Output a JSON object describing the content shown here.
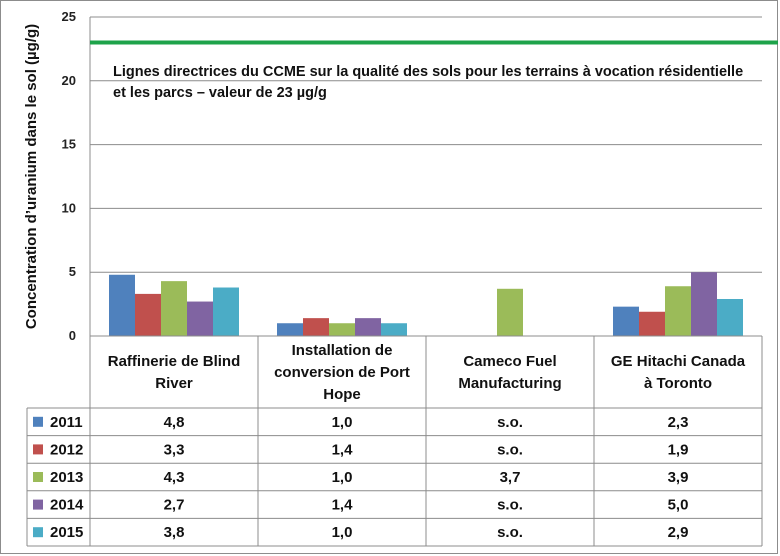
{
  "chart_data": {
    "type": "bar",
    "ylabel": "Concentration d’uranium dans le sol (µg/g)",
    "ylim": [
      0,
      25
    ],
    "yticks": [
      "0",
      "5",
      "10",
      "15",
      "20",
      "25"
    ],
    "grid": true,
    "legend_placement": "data table at bottom",
    "categories": [
      [
        "Raffinerie de Blind",
        "River"
      ],
      [
        "Installation de",
        "conversion de Port",
        "Hope"
      ],
      [
        "Cameco Fuel",
        "Manufacturing"
      ],
      [
        "GE Hitachi Canada",
        "à Toronto"
      ]
    ],
    "series": [
      {
        "name": "2011",
        "color": "#4f81bd",
        "values": [
          4.8,
          1.0,
          null,
          2.3
        ],
        "labels": [
          "4,8",
          "1,0",
          "s.o.",
          "2,3"
        ]
      },
      {
        "name": "2012",
        "color": "#c0504d",
        "values": [
          3.3,
          1.4,
          null,
          1.9
        ],
        "labels": [
          "3,3",
          "1,4",
          "s.o.",
          "1,9"
        ]
      },
      {
        "name": "2013",
        "color": "#9bbb59",
        "values": [
          4.3,
          1.0,
          3.7,
          3.9
        ],
        "labels": [
          "4,3",
          "1,0",
          "3,7",
          "3,9"
        ]
      },
      {
        "name": "2014",
        "color": "#8064a2",
        "values": [
          2.7,
          1.4,
          null,
          5.0
        ],
        "labels": [
          "2,7",
          "1,4",
          "s.o.",
          "5,0"
        ]
      },
      {
        "name": "2015",
        "color": "#4bacc6",
        "values": [
          3.8,
          1.0,
          null,
          2.9
        ],
        "labels": [
          "3,8",
          "1,0",
          "s.o.",
          "2,9"
        ]
      }
    ],
    "reference_line": {
      "value": 23,
      "color": "#1ea34a",
      "label_lines": [
        "Lignes directrices du CCME sur la qualité des sols pour les terrains à vocation résidentielle",
        "et les parcs – valeur de 23 µg/g"
      ]
    }
  }
}
